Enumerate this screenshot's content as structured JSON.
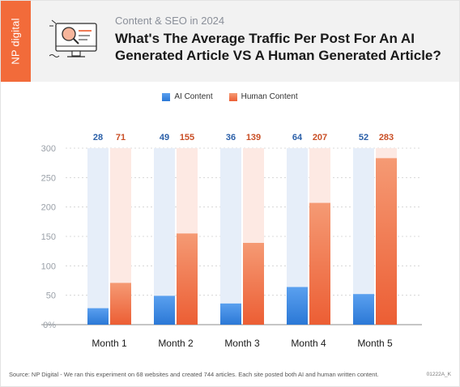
{
  "brand": {
    "logo_text": "NP digital"
  },
  "header": {
    "kicker": "Content & SEO in 2024",
    "title": "What's The Average Traffic Per Post For An AI Generated Article VS A Human Generated Article?",
    "icon": "magnifier-on-monitor-icon"
  },
  "colors": {
    "ai": "#2f7ddb",
    "ai_track": "#e6eef9",
    "human": "#ee6236",
    "human_track": "#fde9e3",
    "ai_label": "#2a5fa8",
    "human_label": "#c94e25",
    "logo_band": "#f26b3a"
  },
  "chart_data": {
    "type": "bar",
    "categories": [
      "Month 1",
      "Month 2",
      "Month 3",
      "Month 4",
      "Month 5"
    ],
    "series": [
      {
        "name": "AI Content",
        "values": [
          28,
          49,
          36,
          64,
          52
        ]
      },
      {
        "name": "Human Content",
        "values": [
          71,
          155,
          139,
          207,
          283
        ]
      }
    ],
    "yticks": [
      "300",
      "250",
      "200",
      "150",
      "100",
      "50",
      "0%"
    ],
    "ylim": [
      0,
      300
    ],
    "grid": true,
    "legend_position": "top-center",
    "title": "",
    "xlabel": "",
    "ylabel": ""
  },
  "footer": {
    "source": "Source: NP Digital - We ran this experiment on 68 websites and created 744 articles. Each site posted both AI and human written content.",
    "code": "01222A_K"
  }
}
